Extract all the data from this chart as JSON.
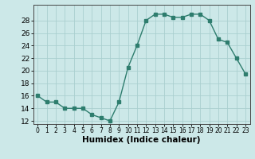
{
  "x": [
    0,
    1,
    2,
    3,
    4,
    5,
    6,
    7,
    8,
    9,
    10,
    11,
    12,
    13,
    14,
    15,
    16,
    17,
    18,
    19,
    20,
    21,
    22,
    23
  ],
  "y": [
    16,
    15,
    15,
    14,
    14,
    14,
    13,
    12.5,
    12,
    15,
    20.5,
    24,
    28,
    29,
    29,
    28.5,
    28.5,
    29,
    29,
    28,
    25,
    24.5,
    22,
    19.5
  ],
  "line_color": "#2e7d6e",
  "marker": "s",
  "marker_size": 2.5,
  "bg_color": "#cce8e8",
  "grid_color": "#aacfcf",
  "xlabel": "Humidex (Indice chaleur)",
  "xlim": [
    -0.5,
    23.5
  ],
  "ylim": [
    11.5,
    30.5
  ],
  "yticks": [
    12,
    14,
    16,
    18,
    20,
    22,
    24,
    26,
    28
  ],
  "xticks": [
    0,
    1,
    2,
    3,
    4,
    5,
    6,
    7,
    8,
    9,
    10,
    11,
    12,
    13,
    14,
    15,
    16,
    17,
    18,
    19,
    20,
    21,
    22,
    23
  ],
  "tick_fontsize": 6.5,
  "xlabel_fontsize": 7.5
}
